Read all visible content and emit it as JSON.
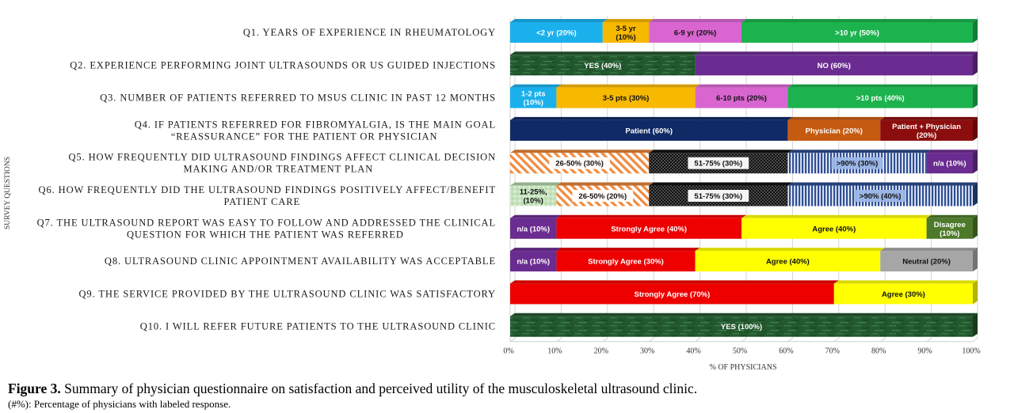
{
  "chart_data": {
    "type": "bar",
    "orientation": "horizontal-stacked-100",
    "ylabel": "SURVEY QUESTIONS",
    "xlabel": "% OF PHYSICIANS",
    "xlim": [
      0,
      100
    ],
    "xticks": [
      "0%",
      "10%",
      "20%",
      "30%",
      "40%",
      "50%",
      "60%",
      "70%",
      "80%",
      "90%",
      "100%"
    ],
    "grid": true,
    "categories": [
      "Q1. YEARS OF EXPERIENCE IN RHEUMATOLOGY",
      "Q2. EXPERIENCE PERFORMING JOINT ULTRASOUNDS OR US GUIDED INJECTIONS",
      "Q3. NUMBER OF PATIENTS REFERRED TO MSUS CLINIC IN PAST 12 MONTHS",
      "Q4. IF PATIENTS REFERRED FOR FIBROMYALGIA, IS THE MAIN GOAL “REASSURANCE” FOR THE PATIENT OR PHYSICIAN",
      "Q5. HOW FREQUENTLY DID ULTRASOUND FINDINGS AFFECT CLINICAL DECISION MAKING AND/OR TREATMENT PLAN",
      "Q6. HOW FREQUENTLY DID THE ULTRASOUND FINDINGS POSITIVELY AFFECT/BENEFIT PATIENT CARE",
      "Q7. THE ULTRASOUND REPORT WAS EASY TO FOLLOW AND ADDRESSED THE CLINICAL QUESTION FOR WHICH THE PATIENT WAS REFERRED",
      "Q8. ULTRASOUND CLINIC APPOINTMENT AVAILABILITY WAS ACCEPTABLE",
      "Q9. THE SERVICE PROVIDED BY THE ULTRASOUND CLINIC WAS SATISFACTORY",
      "Q10. I WILL REFER FUTURE PATIENTS TO THE ULTRASOUND CLINIC"
    ],
    "rows": [
      {
        "segments": [
          {
            "label": "<2 yr (20%)",
            "value": 20,
            "color": "#1ab0ec",
            "pattern": "solid"
          },
          {
            "label": "3-5 yr (10%)",
            "value": 10,
            "color": "#f7b800",
            "pattern": "solid"
          },
          {
            "label": "6-9 yr (20%)",
            "value": 20,
            "color": "#d966d0",
            "pattern": "solid"
          },
          {
            "label": ">10 yr (50%)",
            "value": 50,
            "color": "#1cb34e",
            "pattern": "solid"
          }
        ]
      },
      {
        "segments": [
          {
            "label": "YES (40%)",
            "value": 40,
            "color": "#24592f",
            "pattern": "texture"
          },
          {
            "label": "NO (60%)",
            "value": 60,
            "color": "#6a2c90",
            "pattern": "solid"
          }
        ]
      },
      {
        "segments": [
          {
            "label": "1-2 pts (10%)",
            "value": 10,
            "color": "#1ab0ec",
            "pattern": "solid"
          },
          {
            "label": "3-5 pts (30%)",
            "value": 30,
            "color": "#f7b800",
            "pattern": "solid"
          },
          {
            "label": "6-10 pts (20%)",
            "value": 20,
            "color": "#d966d0",
            "pattern": "solid"
          },
          {
            "label": ">10 pts (40%)",
            "value": 40,
            "color": "#1cb34e",
            "pattern": "solid"
          }
        ]
      },
      {
        "segments": [
          {
            "label": "Patient (60%)",
            "value": 60,
            "color": "#102a66",
            "pattern": "solid"
          },
          {
            "label": "Physician (20%)",
            "value": 20,
            "color": "#c55a11",
            "pattern": "solid"
          },
          {
            "label": "Patient + Physician (20%)",
            "value": 20,
            "color": "#8b0d0d",
            "pattern": "solid"
          }
        ]
      },
      {
        "segments": [
          {
            "label": "26-50% (30%)",
            "value": 30,
            "color": "#f08a3c",
            "pattern": "diagonal"
          },
          {
            "label": "51-75% (30%)",
            "value": 30,
            "color": "#111111",
            "pattern": "dots"
          },
          {
            "label": ">90% (30%)",
            "value": 30,
            "color": "#2f4f95",
            "pattern": "vertical"
          },
          {
            "label": "n/a (10%)",
            "value": 10,
            "color": "#6a2c90",
            "pattern": "solid"
          }
        ]
      },
      {
        "segments": [
          {
            "label": "11-25%, (10%)",
            "value": 10,
            "color": "#b8dcb0",
            "pattern": "light"
          },
          {
            "label": "26-50% (20%)",
            "value": 20,
            "color": "#f08a3c",
            "pattern": "diagonal"
          },
          {
            "label": "51-75% (30%)",
            "value": 30,
            "color": "#111111",
            "pattern": "dots"
          },
          {
            "label": ">90% (40%)",
            "value": 40,
            "color": "#2f4f95",
            "pattern": "vertical"
          }
        ]
      },
      {
        "segments": [
          {
            "label": "n/a (10%)",
            "value": 10,
            "color": "#6a2c90",
            "pattern": "solid"
          },
          {
            "label": "Strongly Agree (40%)",
            "value": 40,
            "color": "#ee0000",
            "pattern": "solid"
          },
          {
            "label": "Agree (40%)",
            "value": 40,
            "color": "#ffff00",
            "pattern": "solid"
          },
          {
            "label": "Disagree (10%)",
            "value": 10,
            "color": "#4d7a2a",
            "pattern": "solid"
          }
        ]
      },
      {
        "segments": [
          {
            "label": "n/a (10%)",
            "value": 10,
            "color": "#6a2c90",
            "pattern": "solid"
          },
          {
            "label": "Strongly Agree (30%)",
            "value": 30,
            "color": "#ee0000",
            "pattern": "solid"
          },
          {
            "label": "Agree (40%)",
            "value": 40,
            "color": "#ffff00",
            "pattern": "solid"
          },
          {
            "label": "Neutral (20%)",
            "value": 20,
            "color": "#a6a6a6",
            "pattern": "solid"
          }
        ]
      },
      {
        "segments": [
          {
            "label": "Strongly Agree (70%)",
            "value": 70,
            "color": "#ee0000",
            "pattern": "solid"
          },
          {
            "label": "Agree (30%)",
            "value": 30,
            "color": "#ffff00",
            "pattern": "solid"
          }
        ]
      },
      {
        "segments": [
          {
            "label": "YES (100%)",
            "value": 100,
            "color": "#24592f",
            "pattern": "texture"
          }
        ]
      }
    ]
  },
  "caption": {
    "figure_label": "Figure 3.",
    "figure_text": " Summary of physician questionnaire on satisfaction and perceived utility of the musculoskeletal ultrasound clinic.",
    "note": "(#%): Percentage of physicians with labeled response."
  }
}
